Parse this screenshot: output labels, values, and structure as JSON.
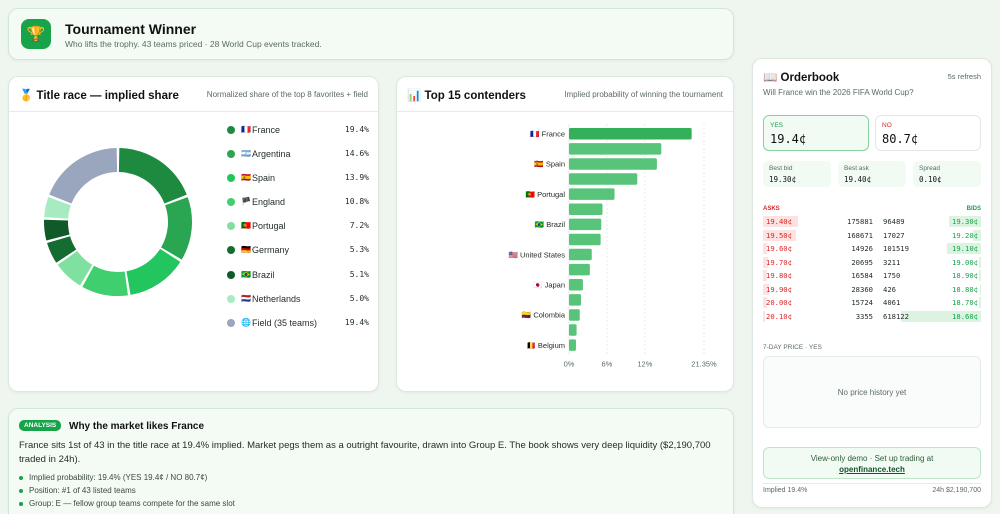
{
  "header": {
    "icon": "trophy-icon",
    "title": "Tournament Winner",
    "subtitle": "Who lifts the trophy. 43 teams priced · 28 World Cup events tracked."
  },
  "title_race": {
    "icon": "medal-icon",
    "title": "Title race — implied share",
    "subtitle": "Normalized share of the top 8 favorites + field",
    "legend": [
      {
        "flag": "🇫🇷",
        "name": "France",
        "value": "19.4%",
        "color": "#1e8a3f",
        "share": 19.4
      },
      {
        "flag": "🇦🇷",
        "name": "Argentina",
        "value": "14.6%",
        "color": "#2aa551",
        "share": 14.6
      },
      {
        "flag": "🇪🇸",
        "name": "Spain",
        "value": "13.9%",
        "color": "#22c55e",
        "share": 13.9
      },
      {
        "flag": "🏴",
        "name": "England",
        "value": "10.8%",
        "color": "#3fcf6e",
        "share": 10.8
      },
      {
        "flag": "🇵🇹",
        "name": "Portugal",
        "value": "7.2%",
        "color": "#7fe0a0",
        "share": 7.2
      },
      {
        "flag": "🇩🇪",
        "name": "Germany",
        "value": "5.3%",
        "color": "#146c31",
        "share": 5.3
      },
      {
        "flag": "🇧🇷",
        "name": "Brazil",
        "value": "5.1%",
        "color": "#0f5a28",
        "share": 5.1
      },
      {
        "flag": "🇳🇱",
        "name": "Netherlands",
        "value": "5.0%",
        "color": "#a7ecc0",
        "share": 5.0
      },
      {
        "flag": "🌐",
        "name": "Field (35 teams)",
        "value": "19.4%",
        "color": "#9aa6bd",
        "share": 19.4
      }
    ]
  },
  "contenders": {
    "icon": "bar-chart-icon",
    "title": "Top 15 contenders",
    "subtitle": "Implied probability of winning the tournament"
  },
  "chart_data": {
    "type": "bar",
    "orientation": "horizontal",
    "categories": [
      "France",
      "",
      "Spain",
      "",
      "Portugal",
      "",
      "Brazil",
      "",
      "United States",
      "",
      "Japan",
      "",
      "Colombia",
      "",
      "Belgium"
    ],
    "category_flags": [
      "🇫🇷",
      "",
      "🇪🇸",
      "",
      "🇵🇹",
      "",
      "🇧🇷",
      "",
      "🇺🇸",
      "",
      "🇯🇵",
      "",
      "🇨🇴",
      "",
      "🇧🇪"
    ],
    "values": [
      19.4,
      14.6,
      13.9,
      10.8,
      7.2,
      5.3,
      5.1,
      5.0,
      3.6,
      3.3,
      2.2,
      1.9,
      1.7,
      1.2,
      1.1
    ],
    "xticks": [
      "0%",
      "6%",
      "12%",
      "21.35%"
    ],
    "xtick_values": [
      0,
      6,
      12,
      21.35
    ],
    "xlim": [
      0,
      21.35
    ],
    "grid": true,
    "color": "#3fb861"
  },
  "orderbook": {
    "icon": "book-icon",
    "title": "Orderbook",
    "refresh": "5s refresh",
    "question": "Will France win the 2026 FIFA World Cup?",
    "yes_label": "YES",
    "yes_value": "19.4¢",
    "no_label": "NO",
    "no_value": "80.7¢",
    "stats": [
      {
        "label": "Best bid",
        "value": "19.30¢"
      },
      {
        "label": "Best ask",
        "value": "19.40¢"
      },
      {
        "label": "Spread",
        "value": "0.10¢"
      }
    ],
    "asks_label": "ASKS",
    "bids_label": "BIDS",
    "rows": [
      {
        "ask_price": "19.40¢",
        "ask_size": "175881",
        "bid_size": "96489",
        "bid_price": "19.30¢",
        "ask_fill": 0.7,
        "bid_fill": 0.4
      },
      {
        "ask_price": "19.50¢",
        "ask_size": "168671",
        "bid_size": "17027",
        "bid_price": "19.20¢",
        "ask_fill": 0.65,
        "bid_fill": 0.1
      },
      {
        "ask_price": "19.60¢",
        "ask_size": "14926",
        "bid_size": "101519",
        "bid_price": "19.10¢",
        "ask_fill": 0.08,
        "bid_fill": 0.42
      },
      {
        "ask_price": "19.70¢",
        "ask_size": "20695",
        "bid_size": "3211",
        "bid_price": "19.00¢",
        "ask_fill": 0.1,
        "bid_fill": 0.03
      },
      {
        "ask_price": "19.80¢",
        "ask_size": "16584",
        "bid_size": "1750",
        "bid_price": "18.90¢",
        "ask_fill": 0.08,
        "bid_fill": 0.02
      },
      {
        "ask_price": "19.90¢",
        "ask_size": "28360",
        "bid_size": "426",
        "bid_price": "18.80¢",
        "ask_fill": 0.12,
        "bid_fill": 0.01
      },
      {
        "ask_price": "20.00¢",
        "ask_size": "15724",
        "bid_size": "4061",
        "bid_price": "18.70¢",
        "ask_fill": 0.07,
        "bid_fill": 0.03
      },
      {
        "ask_price": "20.10¢",
        "ask_size": "3355",
        "bid_size": "618122",
        "bid_price": "18.60¢",
        "ask_fill": 0.03,
        "bid_fill": 1.0
      }
    ],
    "price_label": "7-DAY PRICE · YES",
    "price_empty": "No price history yet",
    "demo_text": "View-only demo · Set up trading at",
    "demo_link": "openfinance.tech",
    "footer_left": "Implied 19.4%",
    "footer_right": "24h $2,190,700"
  },
  "analysis": {
    "badge": "ANALYSIS",
    "title": "Why the market likes France",
    "body": "France sits 1st of 43 in the title race at 19.4% implied. Market pegs them as a outright favourite, drawn into Group E. The book shows very deep liquidity ($2,190,700 traded in 24h).",
    "bullets": [
      "Implied probability: 19.4% (YES 19.4¢ / NO 80.7¢)",
      "Position: #1 of 43 listed teams",
      "Group: E — fellow group teams compete for the same slot"
    ]
  }
}
